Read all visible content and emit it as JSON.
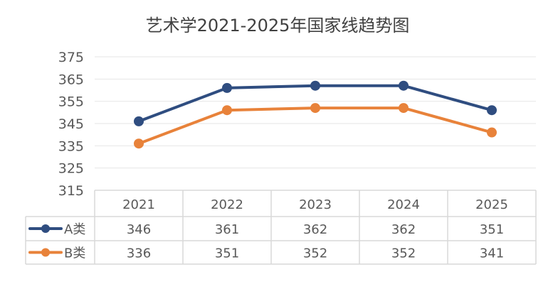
{
  "chart_data": {
    "type": "line",
    "title": "艺术学2021-2025年国家线趋势图",
    "categories": [
      "2021",
      "2022",
      "2023",
      "2024",
      "2025"
    ],
    "series": [
      {
        "name": "A类",
        "values": [
          346,
          361,
          362,
          362,
          351
        ],
        "color": "#2F4D80"
      },
      {
        "name": "B类",
        "values": [
          336,
          351,
          352,
          352,
          341
        ],
        "color": "#E8823A"
      }
    ],
    "ylim": [
      315,
      375
    ],
    "yticks": [
      315,
      325,
      335,
      345,
      355,
      365,
      375
    ],
    "grid": true,
    "legend": "data-table",
    "data_table": true
  }
}
